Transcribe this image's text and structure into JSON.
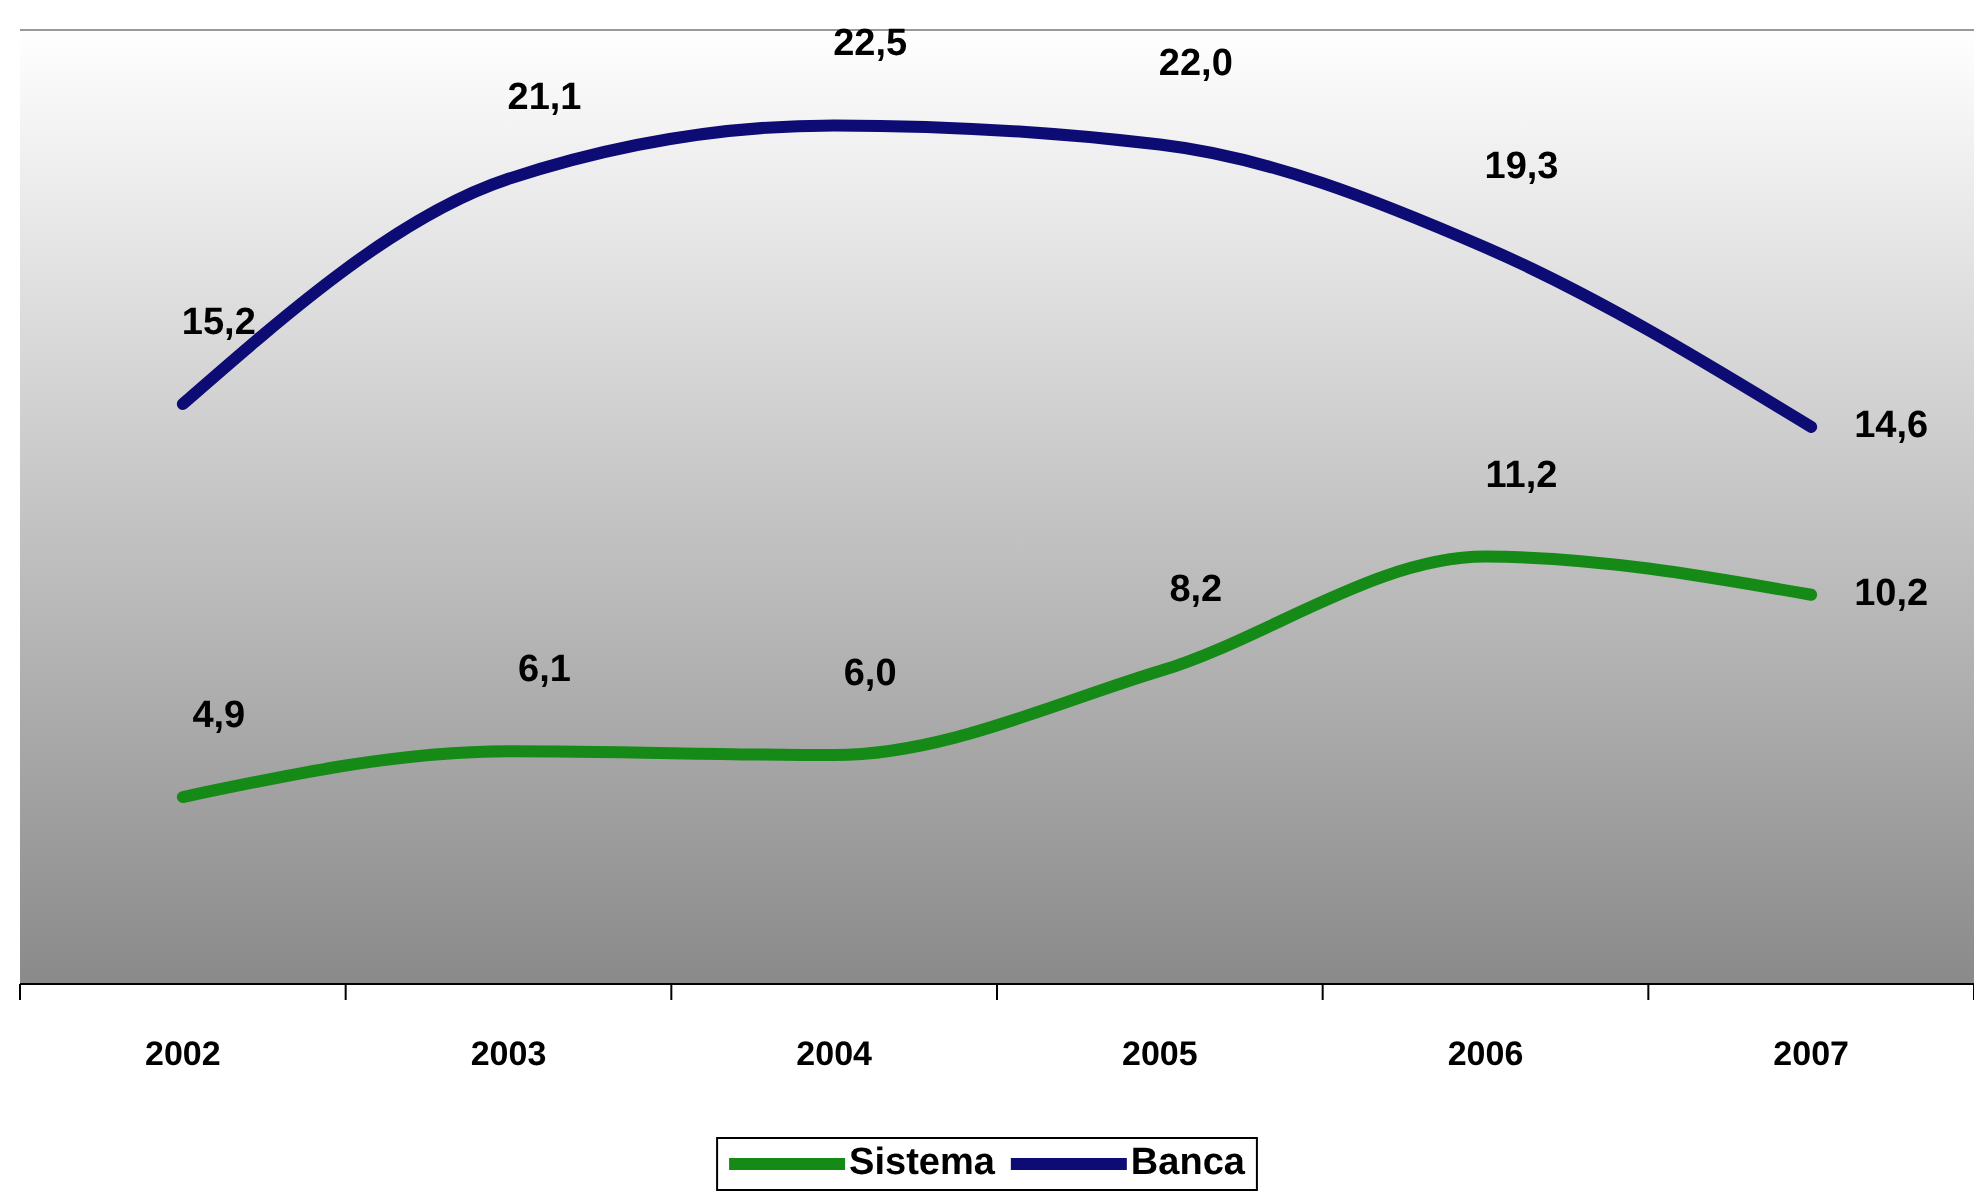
{
  "chart_data": {
    "type": "line",
    "categories": [
      "2002",
      "2003",
      "2004",
      "2005",
      "2006",
      "2007"
    ],
    "series": [
      {
        "name": "Sistema",
        "color": "#168a16",
        "values": [
          4.9,
          6.1,
          6.0,
          8.2,
          11.2,
          10.2
        ],
        "value_labels": [
          "4,9",
          "6,1",
          "6,0",
          "8,2",
          "11,2",
          "10,2"
        ]
      },
      {
        "name": "Banca",
        "color": "#0c0c74",
        "values": [
          15.2,
          21.1,
          22.5,
          22.0,
          19.3,
          14.6
        ],
        "value_labels": [
          "15,2",
          "21,1",
          "22,5",
          "22,0",
          "19,3",
          "14,6"
        ]
      }
    ],
    "ylim": [
      0,
      25
    ],
    "tick_labels": "x",
    "legend": "bottom",
    "marker": "none",
    "line_style": "solid"
  }
}
